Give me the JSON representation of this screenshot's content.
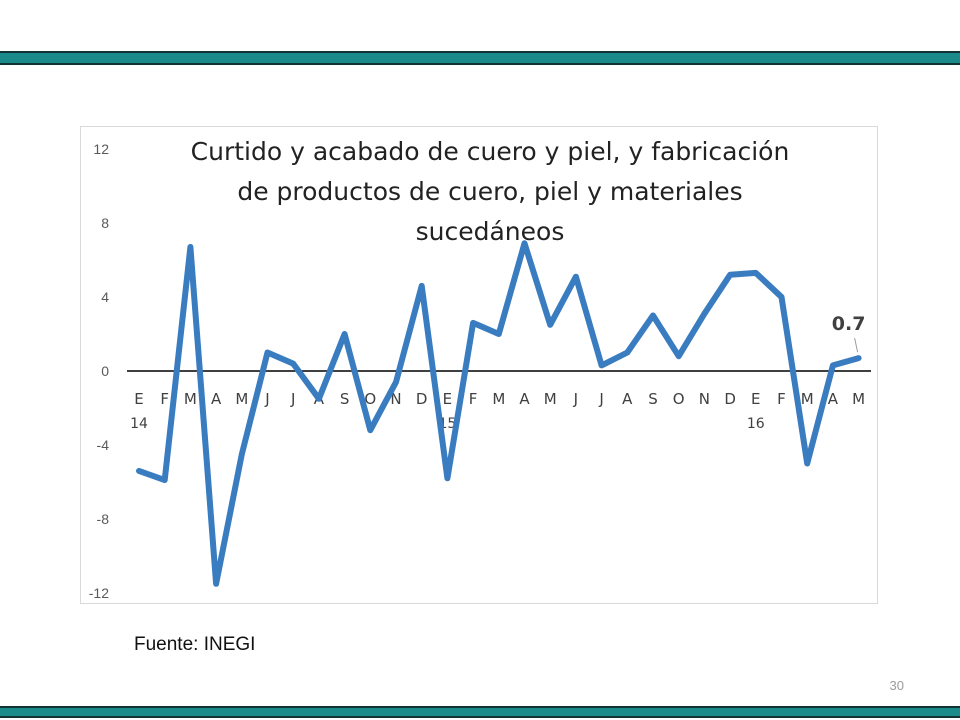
{
  "slide": {
    "source": "Fuente: INEGI",
    "page_number": "30"
  },
  "colors": {
    "band": "#1a8a8a",
    "line": "#3a7cc0",
    "axis": "#000000",
    "tick_text": "#595959",
    "axis_label_text": "#404040"
  },
  "chart_data": {
    "type": "line",
    "title": "Curtido y acabado de cuero y piel, y fabricación de productos de cuero, piel y materiales sucedáneos",
    "title_lines": [
      "Curtido y acabado de cuero y piel, y fabricación",
      "de productos de cuero, piel y materiales",
      "sucedáneos"
    ],
    "categories": [
      "E",
      "F",
      "M",
      "A",
      "M",
      "J",
      "J",
      "A",
      "S",
      "O",
      "N",
      "D",
      "E",
      "F",
      "M",
      "A",
      "M",
      "J",
      "J",
      "A",
      "S",
      "O",
      "N",
      "D",
      "E",
      "F",
      "M",
      "A",
      "M"
    ],
    "year_labels": [
      {
        "index": 0,
        "label": "14"
      },
      {
        "index": 12,
        "label": "15"
      },
      {
        "index": 24,
        "label": "16"
      }
    ],
    "series": [
      {
        "values": [
          -5.4,
          -5.9,
          6.7,
          -11.5,
          -4.5,
          1.0,
          0.4,
          -1.5,
          2.0,
          -3.2,
          -0.6,
          4.6,
          -5.8,
          2.6,
          2.0,
          6.9,
          2.5,
          5.1,
          0.3,
          1.0,
          3.0,
          0.8,
          3.1,
          5.2,
          5.3,
          4.0,
          -5.0,
          0.3,
          0.7
        ]
      }
    ],
    "last_value_label": "0.7",
    "ylim": [
      -12,
      12
    ],
    "yticks": [
      12,
      8,
      4,
      0,
      -4,
      -8,
      -12
    ],
    "ytick_labels": [
      "12",
      "8",
      "4",
      "0",
      "-4",
      "-8",
      "-12"
    ],
    "xlabel": "",
    "ylabel": "",
    "grid": false,
    "legend": "none"
  }
}
